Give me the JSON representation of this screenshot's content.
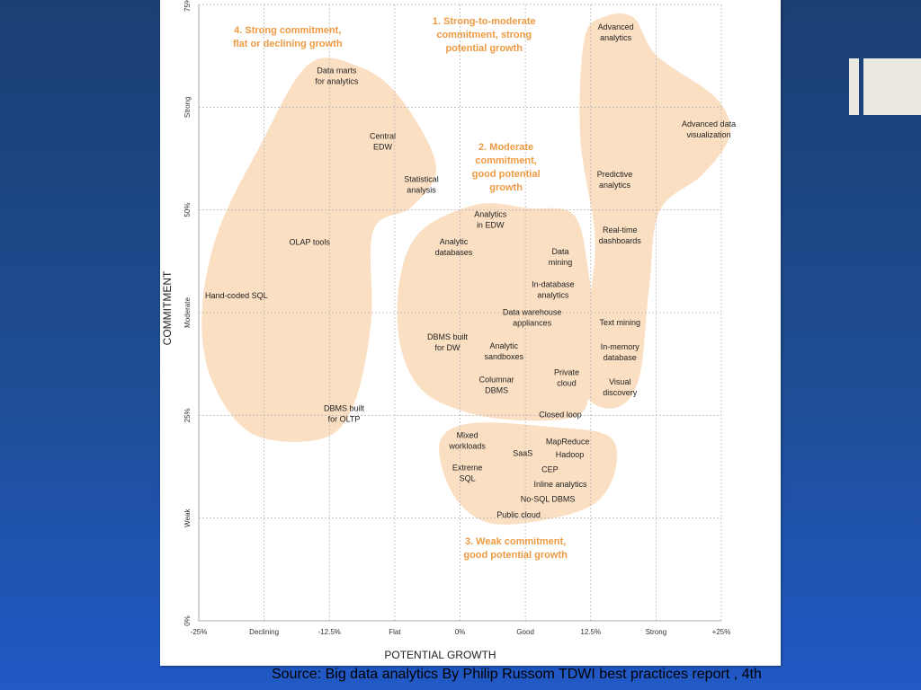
{
  "slide": {
    "source_caption": "Source: Big data analytics By Philip Russom TDWI best practices report , 4th",
    "accent_colors": {
      "blob_fill": "#fbdfc3",
      "group_title": "#ee9a43"
    }
  },
  "chart_data": {
    "type": "scatter",
    "title": "",
    "xlabel": "POTENTIAL GROWTH",
    "ylabel": "COMMITMENT",
    "xlim": [
      -25,
      25
    ],
    "ylim": [
      0,
      75
    ],
    "grid": true,
    "x_ticks": [
      {
        "value": -25,
        "label": "-25%"
      },
      {
        "value": -18.75,
        "label": "Declining"
      },
      {
        "value": -12.5,
        "label": "-12.5%"
      },
      {
        "value": -6.25,
        "label": "Flat"
      },
      {
        "value": 0,
        "label": "0%"
      },
      {
        "value": 6.25,
        "label": "Good"
      },
      {
        "value": 12.5,
        "label": "12.5%"
      },
      {
        "value": 18.75,
        "label": "Strong"
      },
      {
        "value": 25,
        "label": "+25%"
      }
    ],
    "y_ticks": [
      {
        "value": 0,
        "label": "0%"
      },
      {
        "value": 12.5,
        "label": "Weak"
      },
      {
        "value": 25,
        "label": "25%"
      },
      {
        "value": 37.5,
        "label": "Moderate"
      },
      {
        "value": 50,
        "label": "50%"
      },
      {
        "value": 62.5,
        "label": "Strong"
      },
      {
        "value": 75,
        "label": "75%"
      }
    ],
    "groups": [
      {
        "id": 1,
        "title": [
          "1. Strong-to-moderate",
          "commitment, strong",
          "potential growth"
        ],
        "title_pos": [
          2.3,
          72.6
        ],
        "outline": [
          [
            13.8,
            73.5
          ],
          [
            16.6,
            73.4
          ],
          [
            18.8,
            68.8
          ],
          [
            24.5,
            63.6
          ],
          [
            25.8,
            59.1
          ],
          [
            23.2,
            54.3
          ],
          [
            19.1,
            49.9
          ],
          [
            18.1,
            40.6
          ],
          [
            17.1,
            29.4
          ],
          [
            14.8,
            25.9
          ],
          [
            11.9,
            28.1
          ],
          [
            12.4,
            38.3
          ],
          [
            12.9,
            46.9
          ],
          [
            11.5,
            58.9
          ],
          [
            11.9,
            70.8
          ]
        ],
        "points": [
          {
            "lines": [
              "Advanced",
              "analytics"
            ],
            "x": 14.9,
            "y": 71.6
          },
          {
            "lines": [
              "Advanced data",
              "visualization"
            ],
            "x": 23.8,
            "y": 59.8
          },
          {
            "lines": [
              "Predictive",
              "analytics"
            ],
            "x": 14.8,
            "y": 53.7
          },
          {
            "lines": [
              "Real-time",
              "dashboards"
            ],
            "x": 15.3,
            "y": 46.9
          },
          {
            "lines": [
              "Text mining"
            ],
            "x": 15.3,
            "y": 36.3
          },
          {
            "lines": [
              "In-memory",
              "database"
            ],
            "x": 15.3,
            "y": 32.7
          },
          {
            "lines": [
              "Visual",
              "discovery"
            ],
            "x": 15.3,
            "y": 28.4
          }
        ]
      },
      {
        "id": 2,
        "title": [
          "2. Moderate",
          "commitment,",
          "good potential",
          "growth"
        ],
        "title_pos": [
          4.4,
          57.3
        ],
        "outline": [
          [
            1.8,
            50.7
          ],
          [
            6.5,
            50.2
          ],
          [
            10.8,
            49.5
          ],
          [
            12.2,
            43.2
          ],
          [
            12.7,
            35.4
          ],
          [
            12.4,
            28.1
          ],
          [
            11.1,
            24.9
          ],
          [
            5.5,
            24.4
          ],
          [
            0.3,
            25.5
          ],
          [
            -3.8,
            28.3
          ],
          [
            -5.8,
            34.1
          ],
          [
            -5.7,
            42.0
          ],
          [
            -3.6,
            47.6
          ]
        ],
        "points": [
          {
            "lines": [
              "Analytics",
              "in EDW"
            ],
            "x": 2.9,
            "y": 48.8
          },
          {
            "lines": [
              "Analytic",
              "databases"
            ],
            "x": -0.6,
            "y": 45.5
          },
          {
            "lines": [
              "Data",
              "mining"
            ],
            "x": 9.6,
            "y": 44.3
          },
          {
            "lines": [
              "In-database",
              "analytics"
            ],
            "x": 8.9,
            "y": 40.3
          },
          {
            "lines": [
              "Data warehouse",
              "appliances"
            ],
            "x": 6.9,
            "y": 36.9
          },
          {
            "lines": [
              "DBMS built",
              "for DW"
            ],
            "x": -1.2,
            "y": 33.9
          },
          {
            "lines": [
              "Analytic",
              "sandboxes"
            ],
            "x": 4.2,
            "y": 32.8
          },
          {
            "lines": [
              "Private",
              "cloud"
            ],
            "x": 10.2,
            "y": 29.6
          },
          {
            "lines": [
              "Columnar",
              "DBMS"
            ],
            "x": 3.5,
            "y": 28.7
          },
          {
            "lines": [
              "Closed loop"
            ],
            "x": 9.6,
            "y": 25.1
          }
        ]
      },
      {
        "id": 3,
        "title": [
          "3. Weak commitment,",
          "good potential growth"
        ],
        "title_pos": [
          5.3,
          9.3
        ],
        "outline": [
          [
            1.6,
            24.1
          ],
          [
            8.7,
            23.6
          ],
          [
            14.2,
            22.5
          ],
          [
            14.9,
            18.6
          ],
          [
            13.1,
            14.5
          ],
          [
            8.9,
            12.5
          ],
          [
            3.3,
            11.8
          ],
          [
            0.0,
            14.2
          ],
          [
            -1.8,
            19.0
          ],
          [
            -1.6,
            22.6
          ]
        ],
        "points": [
          {
            "lines": [
              "Mixed",
              "workloads"
            ],
            "x": 0.7,
            "y": 21.9
          },
          {
            "lines": [
              "MapReduce"
            ],
            "x": 10.3,
            "y": 21.8
          },
          {
            "lines": [
              "SaaS"
            ],
            "x": 6.0,
            "y": 20.4
          },
          {
            "lines": [
              "Hadoop"
            ],
            "x": 10.5,
            "y": 20.2
          },
          {
            "lines": [
              "CEP"
            ],
            "x": 8.6,
            "y": 18.4
          },
          {
            "lines": [
              "Extreme",
              "SQL"
            ],
            "x": 0.7,
            "y": 18.0
          },
          {
            "lines": [
              "Inline analytics"
            ],
            "x": 9.6,
            "y": 16.6
          },
          {
            "lines": [
              "No-SQL DBMS"
            ],
            "x": 8.4,
            "y": 14.8
          },
          {
            "lines": [
              "Public cloud"
            ],
            "x": 5.6,
            "y": 12.9
          }
        ]
      },
      {
        "id": 4,
        "title": [
          "4. Strong commitment,",
          "flat or declining growth"
        ],
        "title_pos": [
          -16.5,
          71.5
        ],
        "outline": [
          [
            -14.5,
            67.7
          ],
          [
            -9.6,
            67.4
          ],
          [
            -5.7,
            63.6
          ],
          [
            -2.3,
            55.4
          ],
          [
            -4.6,
            50.4
          ],
          [
            -8.3,
            47.5
          ],
          [
            -8.5,
            36.5
          ],
          [
            -10.1,
            26.6
          ],
          [
            -13.1,
            22.2
          ],
          [
            -19.8,
            22.7
          ],
          [
            -23.7,
            29.1
          ],
          [
            -24.7,
            37.4
          ],
          [
            -23.2,
            47.2
          ],
          [
            -19.3,
            57.4
          ]
        ],
        "points": [
          {
            "lines": [
              "Data marts",
              "for analytics"
            ],
            "x": -11.8,
            "y": 66.3
          },
          {
            "lines": [
              "Central",
              "EDW"
            ],
            "x": -7.4,
            "y": 58.3
          },
          {
            "lines": [
              "Statistical",
              "analysis"
            ],
            "x": -3.7,
            "y": 53.1
          },
          {
            "lines": [
              "OLAP tools"
            ],
            "x": -14.4,
            "y": 46.1
          },
          {
            "lines": [
              "Hand-coded SQL"
            ],
            "x": -21.4,
            "y": 39.6
          },
          {
            "lines": [
              "DBMS built",
              "for OLTP"
            ],
            "x": -11.1,
            "y": 25.2
          }
        ]
      }
    ]
  }
}
